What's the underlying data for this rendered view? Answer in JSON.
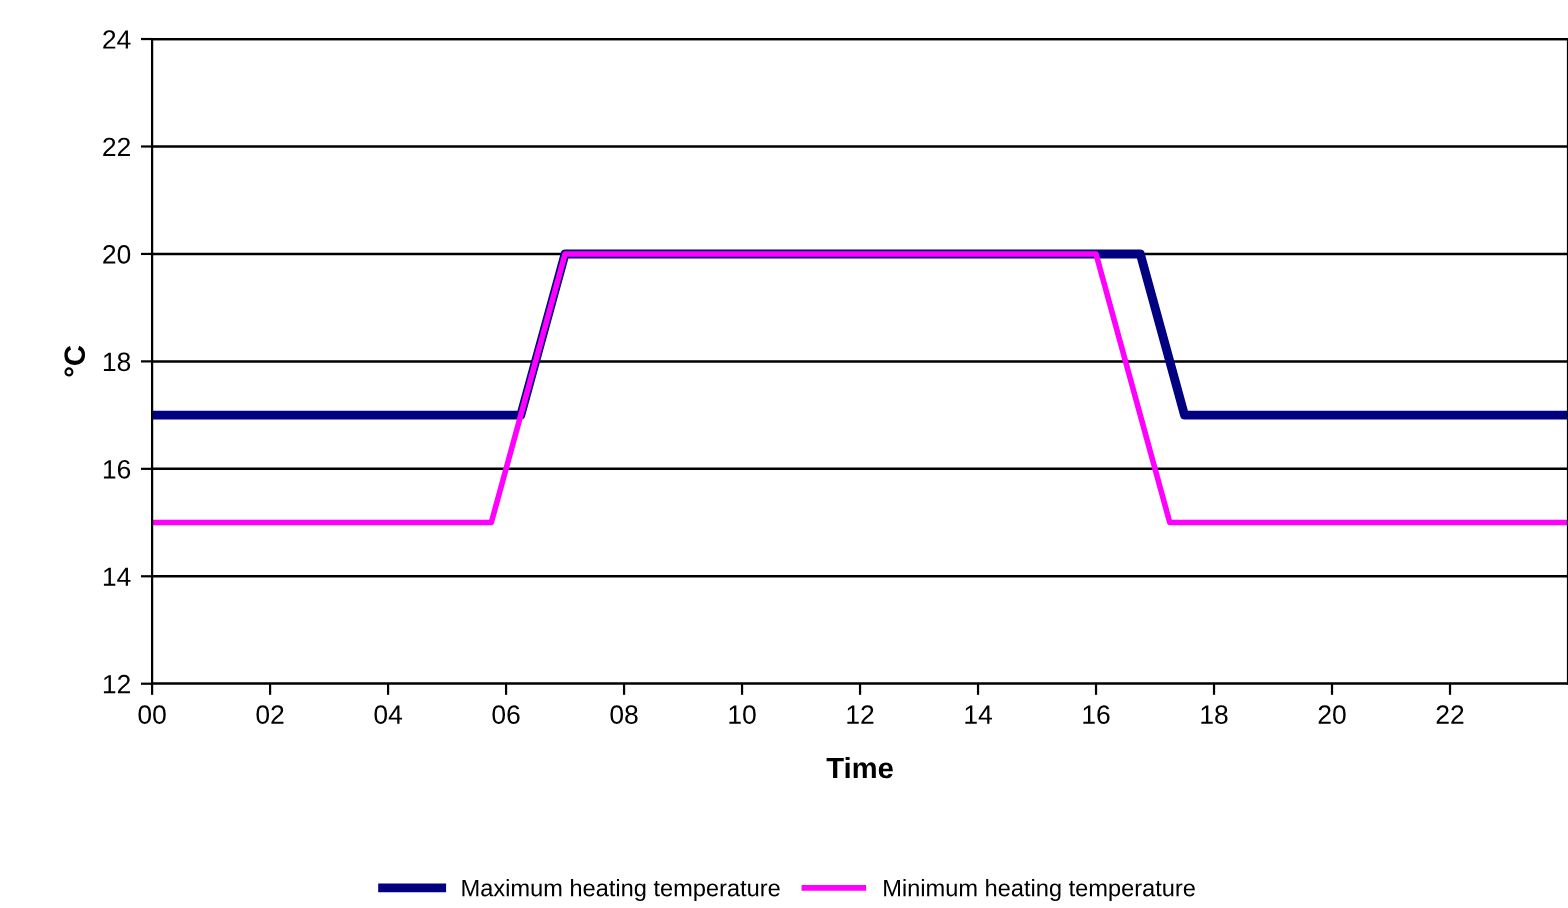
{
  "chart_data": {
    "type": "line",
    "xlabel": "Time",
    "ylabel": "°C",
    "series": [
      {
        "name": "Maximum heating temperature",
        "color": "#000080",
        "x": [
          0,
          6.25,
          7.0,
          16.75,
          17.5,
          24
        ],
        "values": [
          17,
          17,
          20,
          20,
          17,
          17
        ]
      },
      {
        "name": "Minimum heating temperature",
        "color": "#ff00ff",
        "x": [
          0,
          5.75,
          7.0,
          16.0,
          17.25,
          24
        ],
        "values": [
          15,
          15,
          20,
          20,
          15,
          15
        ]
      }
    ],
    "xlim": [
      0,
      24
    ],
    "xticks": [
      {
        "value": 0,
        "label": "00"
      },
      {
        "value": 2,
        "label": "02"
      },
      {
        "value": 4,
        "label": "04"
      },
      {
        "value": 6,
        "label": "06"
      },
      {
        "value": 8,
        "label": "08"
      },
      {
        "value": 10,
        "label": "10"
      },
      {
        "value": 12,
        "label": "12"
      },
      {
        "value": 14,
        "label": "14"
      },
      {
        "value": 16,
        "label": "16"
      },
      {
        "value": 18,
        "label": "18"
      },
      {
        "value": 20,
        "label": "20"
      },
      {
        "value": 22,
        "label": "22"
      }
    ],
    "ylim": [
      12,
      24
    ],
    "yticks": [
      12,
      14,
      16,
      18,
      20,
      22,
      24
    ],
    "grid": "y",
    "legend": "bottom",
    "marker": "none",
    "line_style": "solid"
  }
}
